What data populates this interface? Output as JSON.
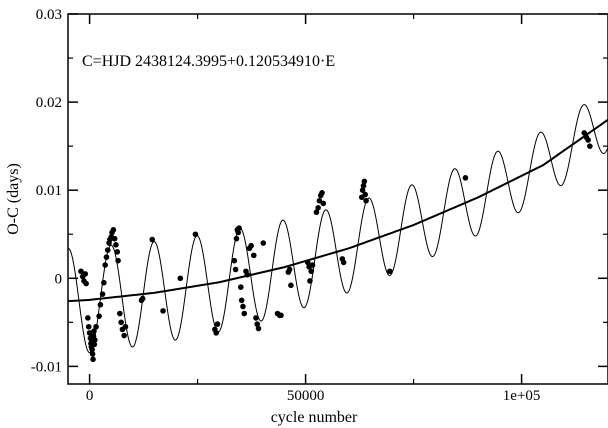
{
  "chart_data": {
    "type": "scatter",
    "title": "",
    "xlabel": "cycle number",
    "ylabel": "O-C (days)",
    "annotation": "C=HJD 2438124.3995+0.120534910·E",
    "xlim": [
      -5000,
      120000
    ],
    "ylim": [
      -0.012,
      0.03
    ],
    "x_ticks": [
      {
        "value": 0,
        "label": "0"
      },
      {
        "value": 50000,
        "label": "50000"
      },
      {
        "value": 100000,
        "label": "1e+05"
      }
    ],
    "x_minor_ticks": [
      25000,
      75000
    ],
    "y_ticks": [
      {
        "value": -0.01,
        "label": "-0.01"
      },
      {
        "value": 0,
        "label": "0"
      },
      {
        "value": 0.01,
        "label": "0.01"
      },
      {
        "value": 0.02,
        "label": "0.02"
      },
      {
        "value": 0.03,
        "label": "0.03"
      }
    ],
    "y_minor_ticks": [
      -0.005,
      0.005,
      0.015,
      0.025
    ],
    "grid": false,
    "series": [
      {
        "type": "scatter",
        "marker": "filled-circle",
        "color": "#000000",
        "points": [
          [
            -2000,
            0.0008
          ],
          [
            -1600,
            0.0002
          ],
          [
            -1300,
            -0.0003
          ],
          [
            -1000,
            0.0005
          ],
          [
            -800,
            -0.0006
          ],
          [
            -400,
            -0.0045
          ],
          [
            -200,
            -0.0055
          ],
          [
            0,
            -0.0062
          ],
          [
            200,
            -0.0068
          ],
          [
            300,
            -0.0074
          ],
          [
            400,
            -0.0078
          ],
          [
            500,
            -0.0072
          ],
          [
            600,
            -0.0081
          ],
          [
            700,
            -0.0086
          ],
          [
            800,
            -0.0092
          ],
          [
            900,
            -0.0066
          ],
          [
            1000,
            -0.006
          ],
          [
            1100,
            -0.0075
          ],
          [
            1200,
            -0.007
          ],
          [
            1500,
            -0.0055
          ],
          [
            2200,
            -0.0043
          ],
          [
            2500,
            -0.003
          ],
          [
            3000,
            -0.0018
          ],
          [
            3300,
            -0.0005
          ],
          [
            3600,
            0.0015
          ],
          [
            3900,
            0.0024
          ],
          [
            4200,
            0.0032
          ],
          [
            4500,
            0.004
          ],
          [
            4700,
            0.0044
          ],
          [
            5000,
            0.0047
          ],
          [
            5200,
            0.0052
          ],
          [
            5500,
            0.0055
          ],
          [
            5800,
            0.0045
          ],
          [
            6100,
            0.0038
          ],
          [
            6400,
            0.003
          ],
          [
            6600,
            0.002
          ],
          [
            7000,
            -0.004
          ],
          [
            7300,
            -0.005
          ],
          [
            7600,
            -0.0058
          ],
          [
            8000,
            -0.0065
          ],
          [
            8300,
            -0.0055
          ],
          [
            12000,
            -0.0025
          ],
          [
            12300,
            -0.0023
          ],
          [
            14500,
            0.0044
          ],
          [
            17000,
            -0.0037
          ],
          [
            21000,
            0.0
          ],
          [
            24500,
            0.005
          ],
          [
            29000,
            -0.0058
          ],
          [
            29300,
            -0.0062
          ],
          [
            29600,
            -0.0052
          ],
          [
            33500,
            0.002
          ],
          [
            33800,
            0.001
          ],
          [
            34000,
            0.0045
          ],
          [
            34200,
            0.0055
          ],
          [
            34400,
            0.0052
          ],
          [
            34600,
            0.0057
          ],
          [
            35000,
            -0.001
          ],
          [
            35200,
            -0.0025
          ],
          [
            35500,
            -0.0032
          ],
          [
            35800,
            -0.004
          ],
          [
            36200,
            0.0008
          ],
          [
            36500,
            0.0004
          ],
          [
            37000,
            0.0034
          ],
          [
            37400,
            0.0037
          ],
          [
            38000,
            0.0026
          ],
          [
            38500,
            -0.0045
          ],
          [
            38800,
            -0.0052
          ],
          [
            39100,
            -0.0057
          ],
          [
            40200,
            0.004
          ],
          [
            43500,
            -0.004
          ],
          [
            44000,
            -0.0042
          ],
          [
            44300,
            -0.0042
          ],
          [
            46000,
            0.0007
          ],
          [
            46300,
            0.001
          ],
          [
            46600,
            -0.0008
          ],
          [
            50500,
            0.0018
          ],
          [
            50800,
            0.0013
          ],
          [
            51000,
            -0.0003
          ],
          [
            51300,
            0.0008
          ],
          [
            51600,
            0.0015
          ],
          [
            52500,
            0.0075
          ],
          [
            52900,
            0.008
          ],
          [
            53200,
            0.0088
          ],
          [
            53500,
            0.0094
          ],
          [
            53800,
            0.0097
          ],
          [
            54100,
            0.0085
          ],
          [
            58500,
            0.0022
          ],
          [
            58800,
            0.0018
          ],
          [
            63000,
            0.0092
          ],
          [
            63200,
            0.01
          ],
          [
            63400,
            0.0105
          ],
          [
            63600,
            0.011
          ],
          [
            63800,
            0.0095
          ],
          [
            64000,
            0.0088
          ],
          [
            69500,
            0.0008
          ],
          [
            87000,
            0.0114
          ],
          [
            114500,
            0.0165
          ],
          [
            115000,
            0.016
          ],
          [
            115400,
            0.0157
          ],
          [
            115800,
            0.015
          ]
        ]
      },
      {
        "type": "line",
        "style": "thick",
        "model": "quadratic",
        "x": [
          -5000,
          0,
          15000,
          30000,
          45000,
          60000,
          75000,
          90000,
          105000,
          120000
        ],
        "y": [
          -0.0026,
          -0.00245,
          -0.00165,
          -0.00045,
          0.00125,
          0.0034,
          0.00605,
          0.0092,
          0.01285,
          0.018
        ]
      },
      {
        "type": "line",
        "style": "thin",
        "model": "quadratic plus sinusoid",
        "period": 9935,
        "phase_zero_at": 2500,
        "amplitude": [
          0.006,
          0.0055,
          0.0035
        ],
        "amplitude_x": [
          0,
          40000,
          120000
        ]
      }
    ]
  }
}
